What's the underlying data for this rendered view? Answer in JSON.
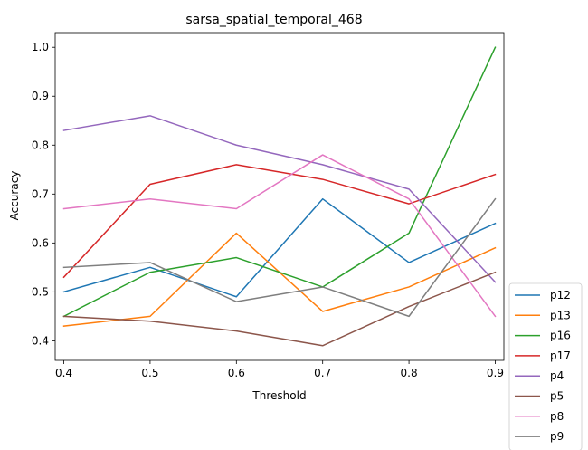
{
  "chart_data": {
    "type": "line",
    "title": "sarsa_spatial_temporal_468",
    "xlabel": "Threshold",
    "ylabel": "Accuracy",
    "x": [
      0.4,
      0.5,
      0.6,
      0.7,
      0.8,
      0.9
    ],
    "xticks": [
      "0.4",
      "0.5",
      "0.6",
      "0.7",
      "0.8",
      "0.9"
    ],
    "yticks": [
      "0.4",
      "0.5",
      "0.6",
      "0.7",
      "0.8",
      "0.9",
      "1.0"
    ],
    "xlim": [
      0.39,
      0.91
    ],
    "ylim": [
      0.36,
      1.03
    ],
    "grid": false,
    "legend_position": "outside-lower-right",
    "series": [
      {
        "name": "p12",
        "color": "#1f77b4",
        "values": [
          0.5,
          0.55,
          0.49,
          0.69,
          0.56,
          0.64
        ]
      },
      {
        "name": "p13",
        "color": "#ff7f0e",
        "values": [
          0.43,
          0.45,
          0.62,
          0.46,
          0.51,
          0.59
        ]
      },
      {
        "name": "p16",
        "color": "#2ca02c",
        "values": [
          0.45,
          0.54,
          0.57,
          0.51,
          0.62,
          1.0
        ]
      },
      {
        "name": "p17",
        "color": "#d62728",
        "values": [
          0.53,
          0.72,
          0.76,
          0.73,
          0.68,
          0.74
        ]
      },
      {
        "name": "p4",
        "color": "#9467bd",
        "values": [
          0.83,
          0.86,
          0.8,
          0.76,
          0.71,
          0.52
        ]
      },
      {
        "name": "p5",
        "color": "#8c564b",
        "values": [
          0.45,
          0.44,
          0.42,
          0.39,
          0.47,
          0.54
        ]
      },
      {
        "name": "p8",
        "color": "#e377c2",
        "values": [
          0.67,
          0.69,
          0.67,
          0.78,
          0.69,
          0.45
        ]
      },
      {
        "name": "p9",
        "color": "#7f7f7f",
        "values": [
          0.55,
          0.56,
          0.48,
          0.51,
          0.45,
          0.69
        ]
      }
    ]
  }
}
